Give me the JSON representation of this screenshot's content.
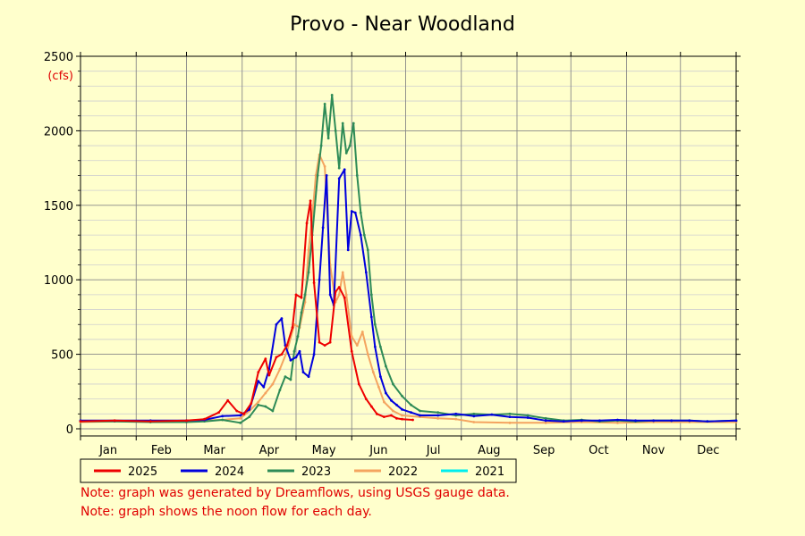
{
  "chart_data": {
    "type": "line",
    "title": "Provo - Near Woodland",
    "unit_label": "(cfs)",
    "xlabel": "",
    "ylabel": "",
    "ylim": [
      0,
      2500
    ],
    "yticks": [
      0,
      500,
      1000,
      1500,
      2000,
      2500
    ],
    "xlim_day_of_year": [
      1,
      366
    ],
    "months": [
      "Jan",
      "Feb",
      "Mar",
      "Apr",
      "May",
      "Jun",
      "Jul",
      "Aug",
      "Sep",
      "Oct",
      "Nov",
      "Dec"
    ],
    "grid": true,
    "legend_position": "bottom",
    "series": [
      {
        "name": "2025",
        "color": "#ee0000",
        "x": [
          1,
          20,
          40,
          60,
          70,
          78,
          83,
          88,
          92,
          96,
          100,
          104,
          106,
          110,
          113,
          116,
          119,
          121,
          124,
          127,
          129,
          131,
          134,
          137,
          140,
          143,
          145,
          148,
          152,
          156,
          160,
          163,
          166,
          170,
          174,
          177,
          180,
          186
        ],
        "y": [
          50,
          55,
          50,
          55,
          65,
          110,
          190,
          120,
          100,
          170,
          380,
          470,
          360,
          480,
          500,
          560,
          680,
          900,
          880,
          1380,
          1530,
          980,
          580,
          560,
          580,
          920,
          950,
          880,
          520,
          300,
          200,
          150,
          100,
          80,
          90,
          70,
          65,
          60
        ]
      },
      {
        "name": "2024",
        "color": "#0000dd",
        "x": [
          1,
          20,
          40,
          60,
          70,
          80,
          90,
          95,
          100,
          103,
          106,
          110,
          113,
          115,
          118,
          121,
          123,
          125,
          128,
          131,
          134,
          136,
          138,
          140,
          142,
          145,
          148,
          150,
          152,
          154,
          157,
          160,
          163,
          165,
          168,
          171,
          174,
          177,
          180,
          185,
          190,
          200,
          210,
          220,
          230,
          240,
          250,
          260,
          270,
          280,
          290,
          300,
          310,
          320,
          330,
          340,
          350,
          366
        ],
        "y": [
          55,
          55,
          55,
          55,
          60,
          85,
          90,
          130,
          320,
          280,
          400,
          700,
          740,
          560,
          460,
          480,
          520,
          380,
          350,
          500,
          1000,
          1350,
          1700,
          900,
          830,
          1680,
          1740,
          1200,
          1460,
          1450,
          1300,
          1050,
          750,
          550,
          350,
          240,
          190,
          160,
          130,
          110,
          90,
          90,
          100,
          85,
          95,
          80,
          75,
          55,
          50,
          55,
          55,
          60,
          55,
          55,
          55,
          55,
          50,
          55
        ]
      },
      {
        "name": "2023",
        "color": "#2e8b57",
        "x": [
          1,
          20,
          40,
          60,
          70,
          80,
          90,
          95,
          100,
          104,
          108,
          112,
          115,
          118,
          120,
          122,
          124,
          126,
          128,
          130,
          133,
          135,
          137,
          139,
          141,
          143,
          145,
          147,
          149,
          151,
          153,
          155,
          157,
          159,
          161,
          163,
          165,
          168,
          171,
          175,
          180,
          185,
          190,
          200,
          210,
          220,
          230,
          240,
          250,
          260,
          270,
          280,
          290,
          300,
          310,
          320,
          330,
          340,
          350,
          366
        ],
        "y": [
          50,
          50,
          45,
          45,
          50,
          60,
          40,
          80,
          160,
          150,
          120,
          260,
          350,
          330,
          520,
          620,
          780,
          900,
          1050,
          1300,
          1700,
          1900,
          2180,
          1950,
          2240,
          2000,
          1750,
          2050,
          1850,
          1900,
          2050,
          1700,
          1450,
          1300,
          1200,
          900,
          700,
          550,
          420,
          300,
          220,
          160,
          120,
          110,
          90,
          100,
          95,
          100,
          90,
          70,
          55,
          60,
          50,
          55,
          50,
          55,
          55,
          55,
          50,
          55
        ]
      },
      {
        "name": "2022",
        "color": "#f4a460",
        "x": [
          1,
          20,
          40,
          60,
          70,
          80,
          90,
          95,
          100,
          104,
          108,
          112,
          116,
          120,
          123,
          126,
          128,
          130,
          132,
          134,
          137,
          140,
          143,
          145,
          147,
          149,
          152,
          155,
          158,
          161,
          164,
          167,
          170,
          175,
          180,
          190,
          200,
          210,
          220,
          240,
          260,
          280,
          300,
          320,
          340,
          366
        ],
        "y": [
          45,
          50,
          50,
          50,
          55,
          60,
          70,
          120,
          180,
          240,
          300,
          400,
          520,
          700,
          680,
          850,
          1200,
          1420,
          1700,
          1840,
          1760,
          1100,
          850,
          900,
          1050,
          900,
          620,
          560,
          650,
          500,
          380,
          280,
          180,
          120,
          90,
          80,
          70,
          65,
          45,
          40,
          40,
          45,
          40,
          45,
          45,
          45
        ]
      },
      {
        "name": "2021",
        "color": "#00eeee",
        "x": [],
        "y": []
      }
    ]
  },
  "notes": [
    "Note: graph was generated by Dreamflows, using USGS gauge data.",
    "Note: graph shows the noon flow for each day."
  ]
}
